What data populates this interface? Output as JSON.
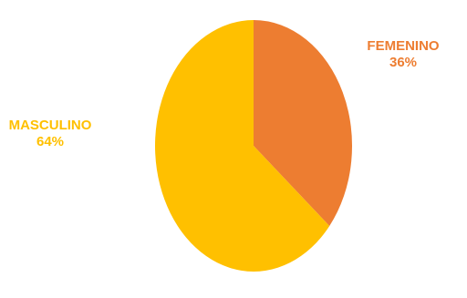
{
  "chart_data": {
    "type": "pie",
    "title": "",
    "legend": "none",
    "start_angle_deg": 0,
    "direction": "clockwise",
    "slices": [
      {
        "label": "FEMENINO",
        "value": 36,
        "value_label": "36%",
        "color": "#ED7D31"
      },
      {
        "label": "MASCULINO",
        "value": 64,
        "value_label": "64%",
        "color": "#FFC000"
      }
    ]
  }
}
